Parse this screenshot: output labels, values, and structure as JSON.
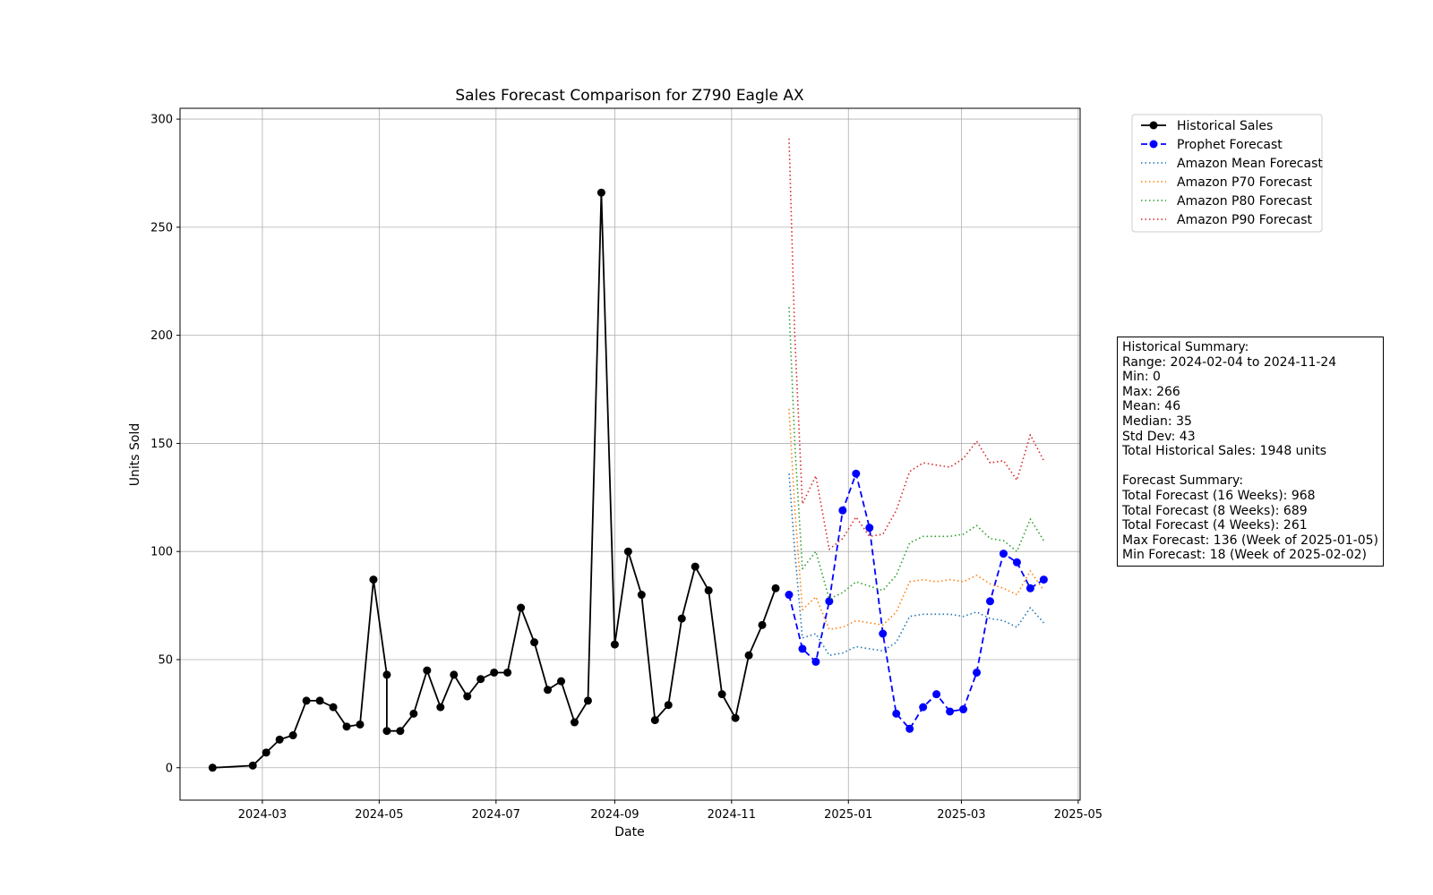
{
  "chart_data": {
    "type": "line",
    "title": "Sales Forecast Comparison for Z790 Eagle AX",
    "xlabel": "Date",
    "ylabel": "Units Sold",
    "ylim": [
      -15,
      305
    ],
    "xlim": [
      "2024-01-18",
      "2025-05-02"
    ],
    "y_ticks": [
      0,
      50,
      100,
      150,
      200,
      250,
      300
    ],
    "x_ticks": [
      "2024-03",
      "2024-05",
      "2024-07",
      "2024-09",
      "2024-11",
      "2025-01",
      "2025-03",
      "2025-05"
    ],
    "grid": true,
    "legend_position": "outside-upper-right",
    "series": [
      {
        "name": "Historical Sales",
        "style": "solid-marker",
        "color": "#000000",
        "x": [
          "2024-02-04",
          "2024-02-25",
          "2024-03-03",
          "2024-03-10",
          "2024-03-17",
          "2024-03-24",
          "2024-03-31",
          "2024-04-07",
          "2024-04-14",
          "2024-04-21",
          "2024-04-28",
          "2024-05-05",
          "2024-05-05",
          "2024-05-12",
          "2024-05-19",
          "2024-05-26",
          "2024-06-02",
          "2024-06-09",
          "2024-06-16",
          "2024-06-23",
          "2024-06-30",
          "2024-07-07",
          "2024-07-14",
          "2024-07-21",
          "2024-07-28",
          "2024-08-04",
          "2024-08-11",
          "2024-08-18",
          "2024-08-25",
          "2024-09-01",
          "2024-09-08",
          "2024-09-15",
          "2024-09-22",
          "2024-09-29",
          "2024-10-06",
          "2024-10-13",
          "2024-10-20",
          "2024-10-27",
          "2024-11-03",
          "2024-11-10",
          "2024-11-17",
          "2024-11-24"
        ],
        "y": [
          0,
          1,
          7,
          13,
          15,
          31,
          31,
          28,
          19,
          20,
          87,
          43,
          17,
          17,
          25,
          45,
          28,
          43,
          33,
          41,
          44,
          44,
          74,
          58,
          36,
          40,
          21,
          31,
          266,
          57,
          100,
          80,
          22,
          29,
          69,
          93,
          82,
          34,
          23,
          52,
          66,
          83
        ]
      },
      {
        "name": "Prophet Forecast",
        "style": "dashed-marker",
        "color": "#0000ff",
        "x": [
          "2024-12-01",
          "2024-12-08",
          "2024-12-15",
          "2024-12-22",
          "2024-12-29",
          "2025-01-05",
          "2025-01-12",
          "2025-01-19",
          "2025-01-26",
          "2025-02-02",
          "2025-02-09",
          "2025-02-16",
          "2025-02-23",
          "2025-03-02",
          "2025-03-09",
          "2025-03-16",
          "2025-03-23",
          "2025-03-30",
          "2025-04-06",
          "2025-04-13"
        ],
        "y": [
          80,
          55,
          49,
          77,
          119,
          136,
          111,
          62,
          25,
          18,
          28,
          34,
          26,
          27,
          44,
          77,
          99,
          95,
          83,
          87
        ]
      },
      {
        "name": "Amazon Mean Forecast",
        "style": "dotted",
        "color": "#1f77b4",
        "x": [
          "2024-12-01",
          "2024-12-04",
          "2024-12-08",
          "2024-12-15",
          "2024-12-22",
          "2024-12-29",
          "2025-01-05",
          "2025-01-12",
          "2025-01-19",
          "2025-01-26",
          "2025-02-02",
          "2025-02-09",
          "2025-02-16",
          "2025-02-23",
          "2025-03-02",
          "2025-03-09",
          "2025-03-16",
          "2025-03-23",
          "2025-03-30",
          "2025-04-06",
          "2025-04-13"
        ],
        "y": [
          136,
          100,
          60,
          62,
          52,
          53,
          56,
          55,
          54,
          58,
          70,
          71,
          71,
          71,
          70,
          72,
          69,
          68,
          65,
          74,
          67
        ]
      },
      {
        "name": "Amazon P70 Forecast",
        "style": "dotted",
        "color": "#ff7f0e",
        "x": [
          "2024-12-01",
          "2024-12-04",
          "2024-12-08",
          "2024-12-15",
          "2024-12-22",
          "2024-12-29",
          "2025-01-05",
          "2025-01-12",
          "2025-01-19",
          "2025-01-26",
          "2025-02-02",
          "2025-02-09",
          "2025-02-16",
          "2025-02-23",
          "2025-03-02",
          "2025-03-09",
          "2025-03-16",
          "2025-03-23",
          "2025-03-30",
          "2025-04-06",
          "2025-04-13"
        ],
        "y": [
          166,
          120,
          73,
          79,
          64,
          65,
          68,
          67,
          66,
          72,
          86,
          87,
          86,
          87,
          86,
          89,
          85,
          83,
          80,
          91,
          82
        ]
      },
      {
        "name": "Amazon P80 Forecast",
        "style": "dotted",
        "color": "#2ca02c",
        "x": [
          "2024-12-01",
          "2024-12-04",
          "2024-12-08",
          "2024-12-15",
          "2024-12-22",
          "2024-12-29",
          "2025-01-05",
          "2025-01-12",
          "2025-01-19",
          "2025-01-26",
          "2025-02-02",
          "2025-02-09",
          "2025-02-16",
          "2025-02-23",
          "2025-03-02",
          "2025-03-09",
          "2025-03-16",
          "2025-03-23",
          "2025-03-30",
          "2025-04-06",
          "2025-04-13"
        ],
        "y": [
          213,
          150,
          92,
          100,
          78,
          81,
          86,
          84,
          82,
          89,
          104,
          107,
          107,
          107,
          108,
          112,
          106,
          105,
          100,
          115,
          105
        ]
      },
      {
        "name": "Amazon P90 Forecast",
        "style": "dotted",
        "color": "#d62728",
        "x": [
          "2024-12-01",
          "2024-12-04",
          "2024-12-08",
          "2024-12-15",
          "2024-12-22",
          "2024-12-29",
          "2025-01-05",
          "2025-01-12",
          "2025-01-19",
          "2025-01-26",
          "2025-02-02",
          "2025-02-09",
          "2025-02-16",
          "2025-02-23",
          "2025-03-02",
          "2025-03-09",
          "2025-03-16",
          "2025-03-23",
          "2025-03-30",
          "2025-04-06",
          "2025-04-13"
        ],
        "y": [
          291,
          200,
          122,
          135,
          101,
          106,
          116,
          107,
          108,
          119,
          137,
          141,
          140,
          139,
          143,
          151,
          141,
          142,
          133,
          154,
          142
        ]
      }
    ]
  },
  "summary": {
    "lines": [
      "Historical Summary:",
      "Range: 2024-02-04 to 2024-11-24",
      "Min: 0",
      "Max: 266",
      "Mean: 46",
      "Median: 35",
      "Std Dev: 43",
      "Total Historical Sales: 1948 units",
      "",
      "Forecast Summary:",
      "Total Forecast (16 Weeks): 968",
      "Total Forecast (8 Weeks): 689",
      "Total Forecast (4 Weeks): 261",
      "Max Forecast: 136 (Week of 2025-01-05)",
      "Min Forecast: 18 (Week of 2025-02-02)"
    ]
  }
}
